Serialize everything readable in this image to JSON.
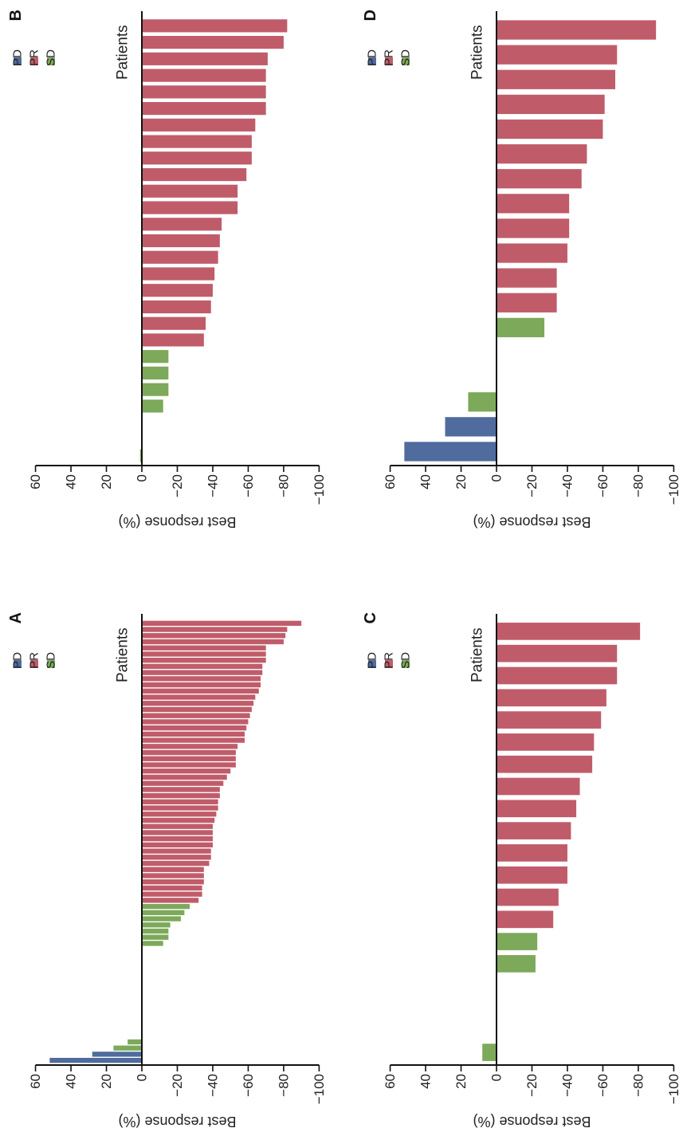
{
  "colors": {
    "PD": "#506b9e",
    "PR": "#c05c6a",
    "SD": "#7da95a"
  },
  "chart_data": [
    {
      "panel": "A",
      "type": "bar",
      "orientation": "rotated-90-clockwise",
      "ylabel": "Best response (%)",
      "xlabel": "Patients",
      "ylim": [
        -100,
        60
      ],
      "yticks": [
        "60",
        "40",
        "20",
        "0",
        "−20",
        "−40",
        "−60",
        "−80",
        "−100"
      ],
      "legend": [
        {
          "key": "PD",
          "label": "PD"
        },
        {
          "key": "PR",
          "label": "PR"
        },
        {
          "key": "SD",
          "label": "SD"
        }
      ],
      "series": [
        {
          "name": "PD",
          "points": [
            {
              "i": 1,
              "value": 52
            },
            {
              "i": 2,
              "value": 28
            }
          ]
        },
        {
          "name": "SD",
          "points": [
            {
              "i": 3,
              "value": 16
            },
            {
              "i": 4,
              "value": 8
            },
            {
              "i": 20,
              "value": -12
            },
            {
              "i": 21,
              "value": -15
            },
            {
              "i": 22,
              "value": -15
            },
            {
              "i": 23,
              "value": -16
            },
            {
              "i": 24,
              "value": -22
            },
            {
              "i": 25,
              "value": -24
            },
            {
              "i": 26,
              "value": -27
            }
          ]
        },
        {
          "name": "PR",
          "points": [
            {
              "i": 27,
              "value": -32
            },
            {
              "i": 28,
              "value": -34
            },
            {
              "i": 29,
              "value": -34
            },
            {
              "i": 30,
              "value": -35
            },
            {
              "i": 31,
              "value": -35
            },
            {
              "i": 32,
              "value": -35
            },
            {
              "i": 33,
              "value": -38
            },
            {
              "i": 34,
              "value": -39
            },
            {
              "i": 35,
              "value": -39
            },
            {
              "i": 36,
              "value": -40
            },
            {
              "i": 37,
              "value": -40
            },
            {
              "i": 38,
              "value": -40
            },
            {
              "i": 39,
              "value": -40
            },
            {
              "i": 40,
              "value": -41
            },
            {
              "i": 41,
              "value": -42
            },
            {
              "i": 42,
              "value": -43
            },
            {
              "i": 43,
              "value": -43
            },
            {
              "i": 44,
              "value": -44
            },
            {
              "i": 45,
              "value": -44
            },
            {
              "i": 46,
              "value": -46
            },
            {
              "i": 47,
              "value": -48
            },
            {
              "i": 48,
              "value": -50
            },
            {
              "i": 49,
              "value": -53
            },
            {
              "i": 50,
              "value": -53
            },
            {
              "i": 51,
              "value": -53
            },
            {
              "i": 52,
              "value": -54
            },
            {
              "i": 53,
              "value": -58
            },
            {
              "i": 54,
              "value": -58
            },
            {
              "i": 55,
              "value": -59
            },
            {
              "i": 56,
              "value": -60
            },
            {
              "i": 57,
              "value": -61
            },
            {
              "i": 58,
              "value": -62
            },
            {
              "i": 59,
              "value": -63
            },
            {
              "i": 60,
              "value": -64
            },
            {
              "i": 61,
              "value": -66
            },
            {
              "i": 62,
              "value": -67
            },
            {
              "i": 63,
              "value": -67
            },
            {
              "i": 64,
              "value": -68
            },
            {
              "i": 65,
              "value": -68
            },
            {
              "i": 66,
              "value": -70
            },
            {
              "i": 67,
              "value": -70
            },
            {
              "i": 68,
              "value": -70
            },
            {
              "i": 69,
              "value": -80
            },
            {
              "i": 70,
              "value": -81
            },
            {
              "i": 71,
              "value": -82
            },
            {
              "i": 72,
              "value": -90
            }
          ]
        }
      ]
    },
    {
      "panel": "B",
      "type": "bar",
      "orientation": "rotated-90-clockwise",
      "ylabel": "Best response (%)",
      "xlabel": "Patients",
      "ylim": [
        -100,
        60
      ],
      "yticks": [
        "60",
        "40",
        "20",
        "0",
        "−20",
        "−40",
        "−60",
        "−80",
        "−100"
      ],
      "legend": [
        {
          "key": "PD",
          "label": "PD"
        },
        {
          "key": "PR",
          "label": "PR"
        },
        {
          "key": "SD",
          "label": "SD"
        }
      ],
      "series": [
        {
          "name": "SD",
          "points": [
            {
              "i": 1,
              "value": 1
            },
            {
              "i": 4,
              "value": -12
            },
            {
              "i": 5,
              "value": -15
            },
            {
              "i": 6,
              "value": -15
            },
            {
              "i": 7,
              "value": -15
            }
          ]
        },
        {
          "name": "PR",
          "points": [
            {
              "i": 8,
              "value": -35
            },
            {
              "i": 9,
              "value": -36
            },
            {
              "i": 10,
              "value": -39
            },
            {
              "i": 11,
              "value": -40
            },
            {
              "i": 12,
              "value": -41
            },
            {
              "i": 13,
              "value": -43
            },
            {
              "i": 14,
              "value": -44
            },
            {
              "i": 15,
              "value": -45
            },
            {
              "i": 16,
              "value": -54
            },
            {
              "i": 17,
              "value": -54
            },
            {
              "i": 18,
              "value": -59
            },
            {
              "i": 19,
              "value": -62
            },
            {
              "i": 20,
              "value": -62
            },
            {
              "i": 21,
              "value": -64
            },
            {
              "i": 22,
              "value": -70
            },
            {
              "i": 23,
              "value": -70
            },
            {
              "i": 24,
              "value": -70
            },
            {
              "i": 25,
              "value": -71
            },
            {
              "i": 26,
              "value": -80
            },
            {
              "i": 27,
              "value": -82
            }
          ]
        }
      ]
    },
    {
      "panel": "C",
      "type": "bar",
      "orientation": "rotated-90-clockwise",
      "ylabel": "Best response (%)",
      "xlabel": "Patients",
      "ylim": [
        -100,
        60
      ],
      "yticks": [
        "60",
        "40",
        "20",
        "0",
        "−20",
        "−40",
        "−60",
        "−80",
        "−100"
      ],
      "legend": [
        {
          "key": "PD",
          "label": "PD"
        },
        {
          "key": "PR",
          "label": "PR"
        },
        {
          "key": "SD",
          "label": "SD"
        }
      ],
      "series": [
        {
          "name": "SD",
          "points": [
            {
              "i": 1,
              "value": 8
            },
            {
              "i": 5,
              "value": -22
            },
            {
              "i": 6,
              "value": -23
            }
          ]
        },
        {
          "name": "PR",
          "points": [
            {
              "i": 7,
              "value": -32
            },
            {
              "i": 8,
              "value": -35
            },
            {
              "i": 9,
              "value": -40
            },
            {
              "i": 10,
              "value": -40
            },
            {
              "i": 11,
              "value": -42
            },
            {
              "i": 12,
              "value": -45
            },
            {
              "i": 13,
              "value": -47
            },
            {
              "i": 14,
              "value": -54
            },
            {
              "i": 15,
              "value": -55
            },
            {
              "i": 16,
              "value": -59
            },
            {
              "i": 17,
              "value": -62
            },
            {
              "i": 18,
              "value": -68
            },
            {
              "i": 19,
              "value": -68
            },
            {
              "i": 20,
              "value": -81
            }
          ]
        }
      ]
    },
    {
      "panel": "D",
      "type": "bar",
      "orientation": "rotated-90-clockwise",
      "ylabel": "Best response (%)",
      "xlabel": "Patients",
      "ylim": [
        -100,
        60
      ],
      "yticks": [
        "60",
        "40",
        "20",
        "0",
        "−20",
        "−40",
        "−60",
        "−80",
        "−100"
      ],
      "legend": [
        {
          "key": "PD",
          "label": "PD"
        },
        {
          "key": "PR",
          "label": "PR"
        },
        {
          "key": "SD",
          "label": "SD"
        }
      ],
      "series": [
        {
          "name": "PD",
          "points": [
            {
              "i": 1,
              "value": 52
            },
            {
              "i": 2,
              "value": 29
            }
          ]
        },
        {
          "name": "SD",
          "points": [
            {
              "i": 3,
              "value": 16
            },
            {
              "i": 6,
              "value": -27
            }
          ]
        },
        {
          "name": "PR",
          "points": [
            {
              "i": 7,
              "value": -34
            },
            {
              "i": 8,
              "value": -34
            },
            {
              "i": 9,
              "value": -40
            },
            {
              "i": 10,
              "value": -41
            },
            {
              "i": 11,
              "value": -41
            },
            {
              "i": 12,
              "value": -48
            },
            {
              "i": 13,
              "value": -51
            },
            {
              "i": 14,
              "value": -60
            },
            {
              "i": 15,
              "value": -61
            },
            {
              "i": 16,
              "value": -67
            },
            {
              "i": 17,
              "value": -68
            },
            {
              "i": 18,
              "value": -90
            }
          ]
        }
      ]
    }
  ]
}
